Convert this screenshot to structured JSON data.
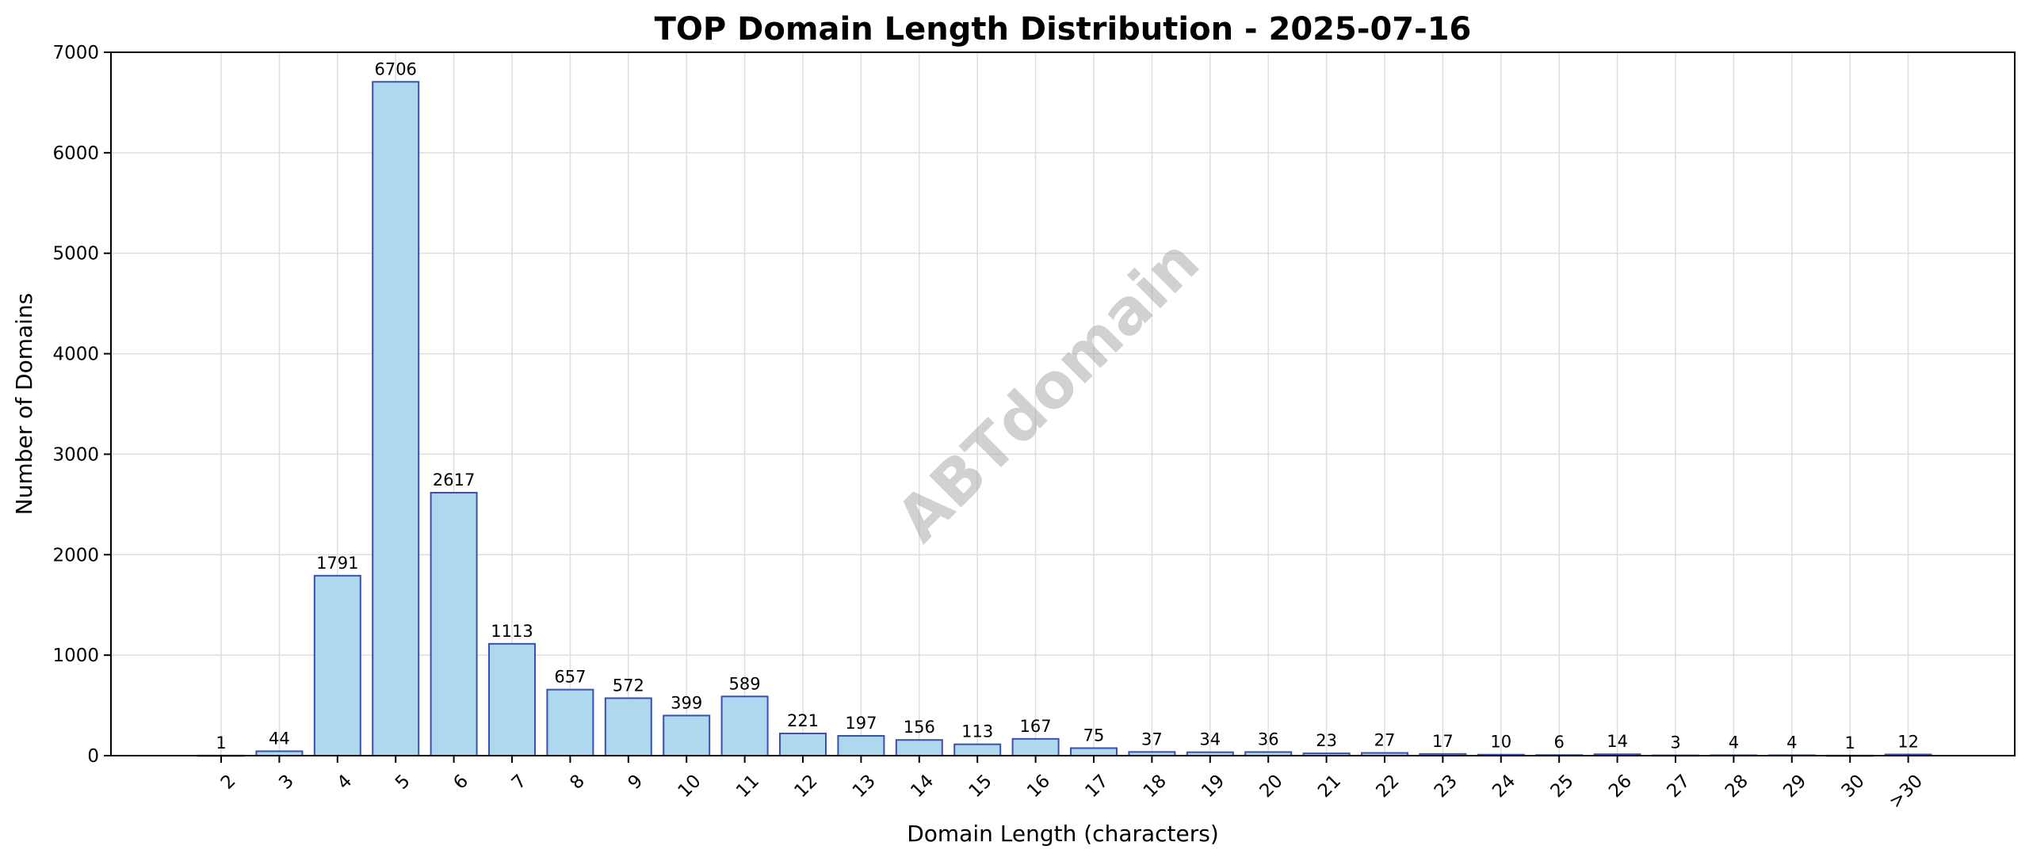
{
  "chart_data": {
    "type": "bar",
    "title": "TOP Domain Length Distribution - 2025-07-16",
    "xlabel": "Domain Length (characters)",
    "ylabel": "Number of Domains",
    "categories": [
      "2",
      "3",
      "4",
      "5",
      "6",
      "7",
      "8",
      "9",
      "10",
      "11",
      "12",
      "13",
      "14",
      "15",
      "16",
      "17",
      "18",
      "19",
      "20",
      "21",
      "22",
      "23",
      "24",
      "25",
      "26",
      "27",
      "28",
      "29",
      "30",
      ">30"
    ],
    "values": [
      1,
      44,
      1791,
      6706,
      2617,
      1113,
      657,
      572,
      399,
      589,
      221,
      197,
      156,
      113,
      167,
      75,
      37,
      34,
      36,
      23,
      27,
      17,
      10,
      6,
      14,
      3,
      4,
      4,
      1,
      12
    ],
    "ylim": [
      0,
      7000
    ],
    "yticks": [
      0,
      1000,
      2000,
      3000,
      4000,
      5000,
      6000,
      7000
    ],
    "grid": true,
    "legend": "none",
    "watermark": "ABTdomain",
    "colors": {
      "bar_fill": "#add8ee",
      "bar_edge": "#3a4fae",
      "grid": "#dedede",
      "axis": "#000000"
    }
  }
}
